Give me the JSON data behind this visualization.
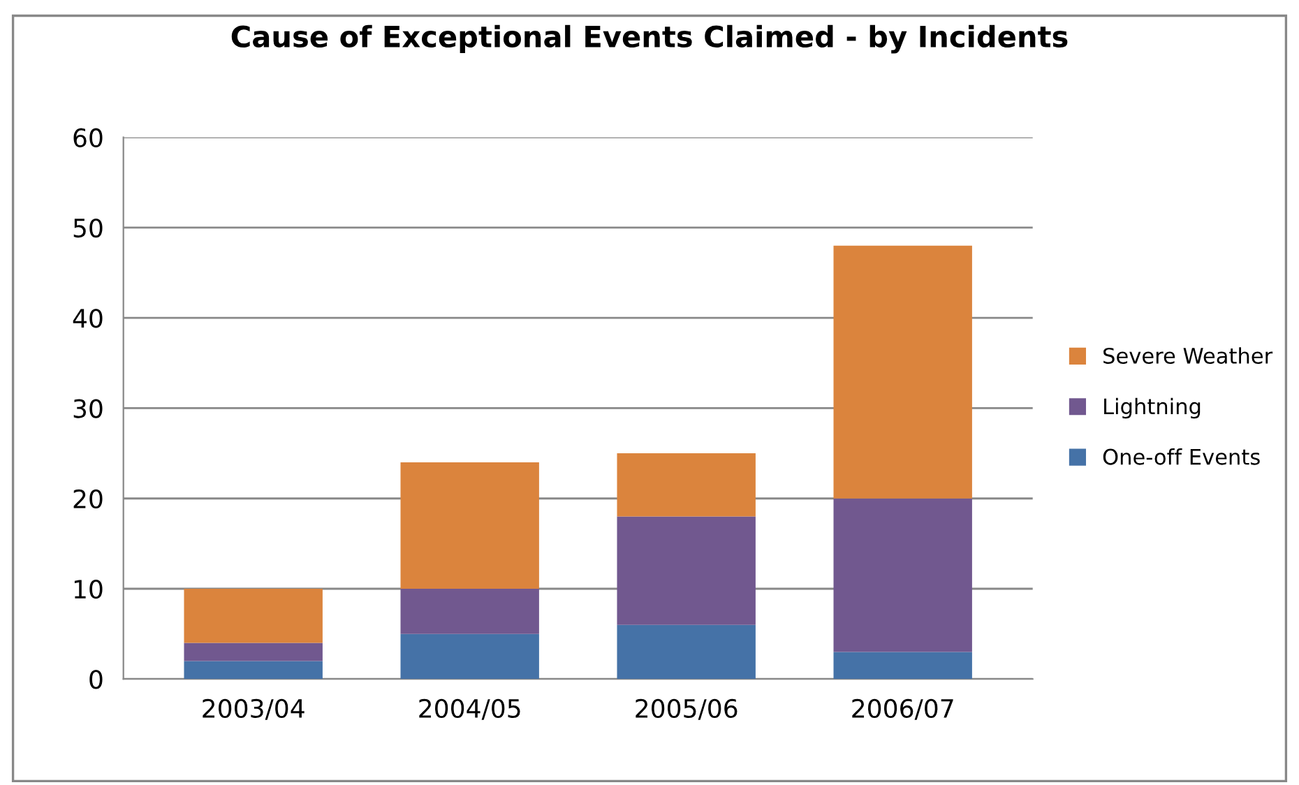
{
  "chart_data": {
    "type": "bar",
    "stacked": true,
    "title": "Cause of Exceptional Events Claimed - by Incidents",
    "categories": [
      "2003/04",
      "2004/05",
      "2005/06",
      "2006/07"
    ],
    "series": [
      {
        "name": "One-off Events",
        "color": "#4572a7",
        "values": [
          2,
          5,
          6,
          3
        ]
      },
      {
        "name": "Lightning",
        "color": "#71588f",
        "values": [
          2,
          5,
          12,
          17
        ]
      },
      {
        "name": "Severe Weather",
        "color": "#db843d",
        "values": [
          6,
          14,
          7,
          28
        ]
      }
    ],
    "ylim": [
      0,
      60
    ],
    "yticks": [
      0,
      10,
      20,
      30,
      40,
      50,
      60
    ],
    "grid": "y",
    "legend": "right"
  }
}
